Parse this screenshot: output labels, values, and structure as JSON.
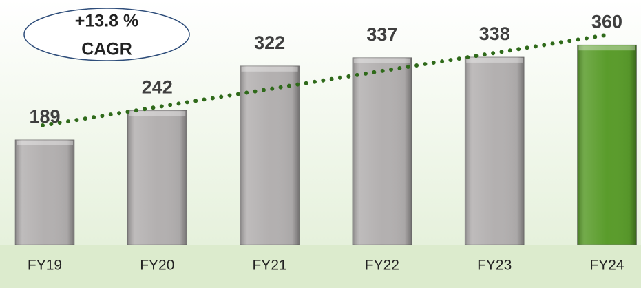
{
  "chart_data": {
    "type": "bar",
    "categories": [
      "FY19",
      "FY20",
      "FY21",
      "FY22",
      "FY23",
      "FY24"
    ],
    "values": [
      189,
      242,
      322,
      337,
      338,
      360
    ],
    "colors": [
      "#b3b0b0",
      "#b3b0b0",
      "#b3b0b0",
      "#b3b0b0",
      "#b3b0b0",
      "#5a9c2b"
    ],
    "ylim": [
      0,
      441
    ],
    "annotation": [
      "+13.8 %",
      "CAGR"
    ]
  }
}
